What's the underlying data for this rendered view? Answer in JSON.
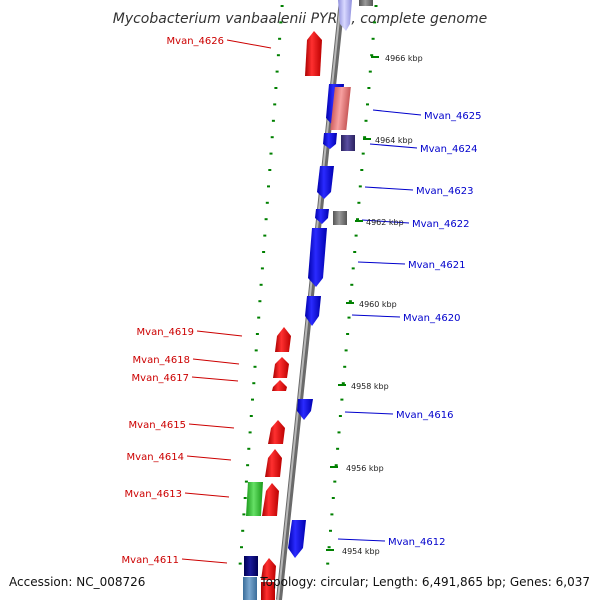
{
  "title": "Mycobacterium vanbaalenii PYR-1, complete genome",
  "footer": {
    "accession": "Accession: NC_008726",
    "topology": "Topology: circular; Length: 6,491,865 bp; Genes: 6,037"
  },
  "kbp_labels": [
    {
      "text": "4966 kbp",
      "pos": 4966
    },
    {
      "text": "4964 kbp",
      "pos": 4964
    },
    {
      "text": "4962 kbp",
      "pos": 4962
    },
    {
      "text": "4960 kbp",
      "pos": 4960
    },
    {
      "text": "4958 kbp",
      "pos": 4958
    },
    {
      "text": "4956 kbp",
      "pos": 4956
    },
    {
      "text": "4954 kbp",
      "pos": 4954
    }
  ],
  "genes_left": [
    {
      "label": "Mvan_4626"
    },
    {
      "label": "Mvan_4619"
    },
    {
      "label": "Mvan_4618"
    },
    {
      "label": "Mvan_4617"
    },
    {
      "label": "Mvan_4615"
    },
    {
      "label": "Mvan_4614"
    },
    {
      "label": "Mvan_4613"
    },
    {
      "label": "Mvan_4611"
    }
  ],
  "genes_right": [
    {
      "label": "Mvan_4625"
    },
    {
      "label": "Mvan_4624"
    },
    {
      "label": "Mvan_4623"
    },
    {
      "label": "Mvan_4622"
    },
    {
      "label": "Mvan_4621"
    },
    {
      "label": "Mvan_4620"
    },
    {
      "label": "Mvan_4616"
    },
    {
      "label": "Mvan_4612"
    }
  ],
  "colors": {
    "forward_cds": "#ff0000",
    "reverse_cds": "#0000ff",
    "rna_gene": "#33cc33",
    "other_forward": "#f08080",
    "other_reverse": "#483d8b",
    "pseudo": "#808080",
    "ticks": "#008000",
    "backbone": "#888888"
  }
}
